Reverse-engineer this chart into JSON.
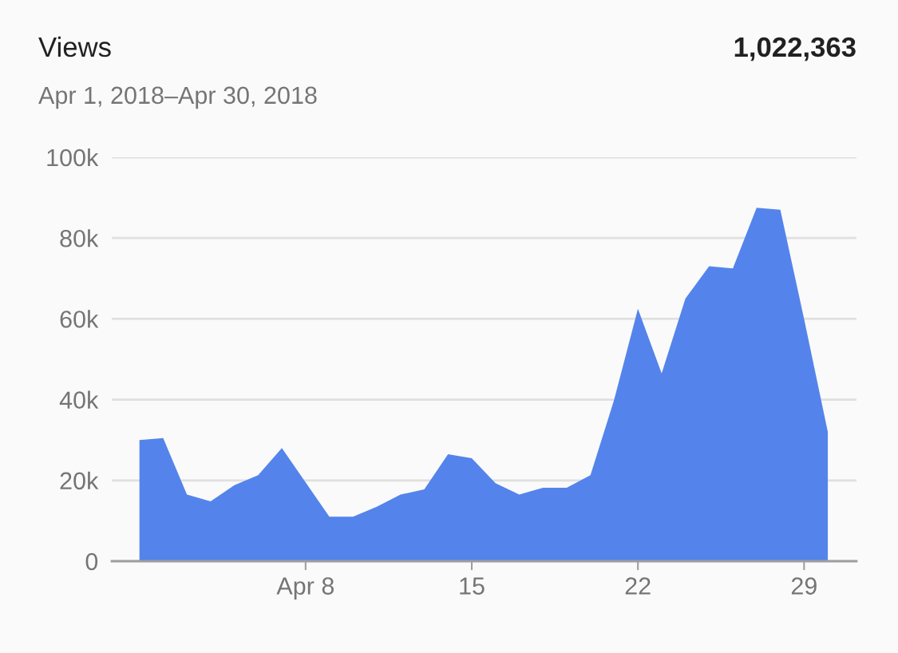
{
  "chart_data": {
    "type": "area",
    "title": "Views",
    "subtitle": "Apr 1, 2018–Apr 30, 2018",
    "annotations": [
      "1,022,363"
    ],
    "x": [
      "2018-04-01",
      "2018-04-02",
      "2018-04-03",
      "2018-04-04",
      "2018-04-05",
      "2018-04-06",
      "2018-04-07",
      "2018-04-08",
      "2018-04-09",
      "2018-04-10",
      "2018-04-11",
      "2018-04-12",
      "2018-04-13",
      "2018-04-14",
      "2018-04-15",
      "2018-04-16",
      "2018-04-17",
      "2018-04-18",
      "2018-04-19",
      "2018-04-20",
      "2018-04-21",
      "2018-04-22",
      "2018-04-23",
      "2018-04-24",
      "2018-04-25",
      "2018-04-26",
      "2018-04-27",
      "2018-04-28",
      "2018-04-29",
      "2018-04-30"
    ],
    "series": [
      {
        "color": "#5484eb",
        "values": [
          30000,
          30500,
          16500,
          14800,
          18800,
          21300,
          28000,
          19500,
          11000,
          11000,
          13500,
          16500,
          17800,
          26500,
          25500,
          19300,
          16500,
          18200,
          18200,
          21300,
          40000,
          62500,
          46500,
          65000,
          73000,
          72500,
          87500,
          87000,
          60000,
          32000
        ]
      }
    ],
    "xlim": [
      "2018-03-30T20:00",
      "2018-05-01T05:00"
    ],
    "xticks": [
      {
        "value": "2018-04-08",
        "label": "Apr 8"
      },
      {
        "value": "2018-04-15",
        "label": "15"
      },
      {
        "value": "2018-04-22",
        "label": "22"
      },
      {
        "value": "2018-04-29",
        "label": "29"
      }
    ],
    "ylim": [
      0,
      100000
    ],
    "yticks": [
      {
        "value": 0,
        "label": "0"
      },
      {
        "value": 20000,
        "label": "20k"
      },
      {
        "value": 40000,
        "label": "40k"
      },
      {
        "value": 60000,
        "label": "60k"
      },
      {
        "value": 80000,
        "label": "80k"
      },
      {
        "value": 100000,
        "label": "100k"
      }
    ],
    "grid": "y",
    "legend": false
  }
}
